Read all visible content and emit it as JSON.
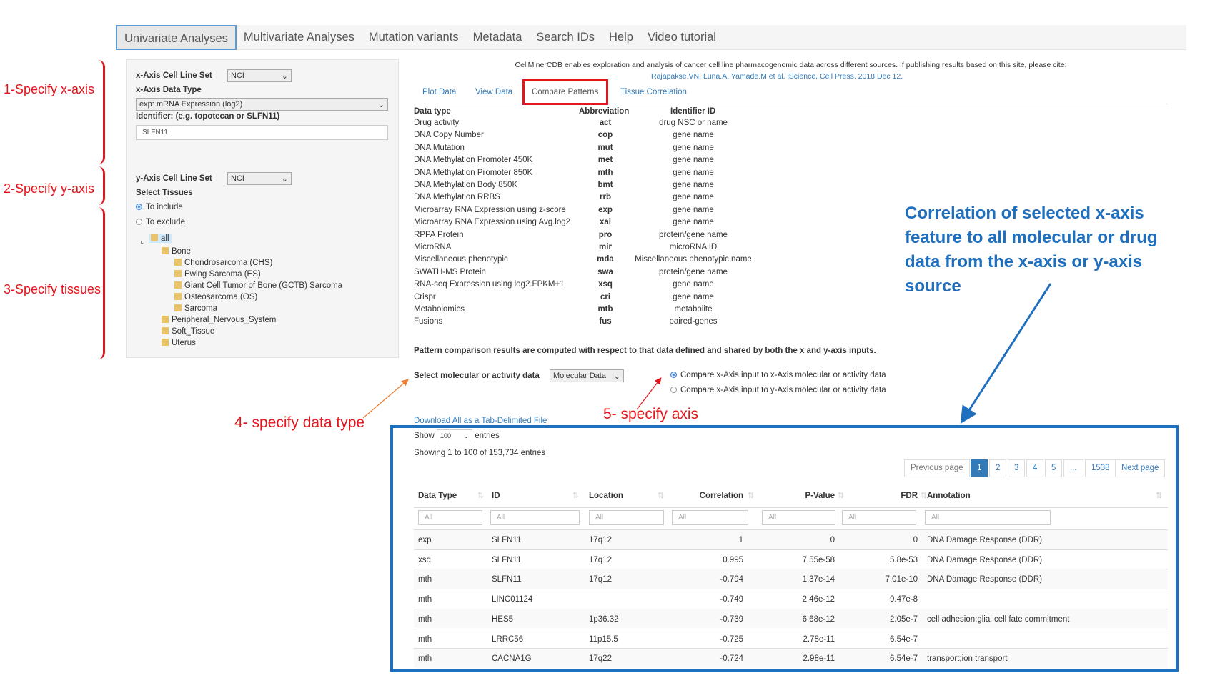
{
  "nav": {
    "tabs": [
      "Univariate Analyses",
      "Multivariate Analyses",
      "Mutation variants",
      "Metadata",
      "Search IDs",
      "Help",
      "Video tutorial"
    ],
    "active": 0
  },
  "left": {
    "x_cell_line_label": "x-Axis Cell Line Set",
    "x_cell_line_value": "NCI",
    "x_data_type_label": "x-Axis Data Type",
    "x_data_type_value": "exp: mRNA Expression (log2)",
    "identifier_label": "Identifier: (e.g. topotecan or SLFN11)",
    "identifier_value": "SLFN11",
    "y_cell_line_label": "y-Axis Cell Line Set",
    "y_cell_line_value": "NCI",
    "select_tissues_label": "Select Tissues",
    "to_include": "To include",
    "to_exclude": "To exclude",
    "tree": {
      "root": "all",
      "bone": "Bone",
      "bone_children": [
        "Chondrosarcoma (CHS)",
        "Ewing Sarcoma (ES)",
        "Giant Cell Tumor of Bone (GCTB) Sarcoma",
        "Osteosarcoma (OS)",
        "Sarcoma"
      ],
      "others": [
        "Peripheral_Nervous_System",
        "Soft_Tissue",
        "Uterus"
      ]
    }
  },
  "annotations": {
    "x_axis": "1-Specify x-axis",
    "y_axis": "2-Specify y-axis",
    "tissues": "3-Specify tissues",
    "data_type": "4- specify data type",
    "axis": "5- specify axis",
    "correlation": "Correlation of selected x-axis feature to all molecular or drug data from the x-axis or y-axis source",
    "colors": {
      "red": "#e3141b",
      "orange": "#ed7d31",
      "blue": "#1f6fbf"
    }
  },
  "intro": {
    "text": "CellMinerCDB enables exploration and analysis of cancer cell line pharmacogenomic data across different sources. If publishing results based on this site, please cite:",
    "citation": "Rajapakse.VN, Luna.A, Yamade.M et al. iScience, Cell Press. 2018 Dec 12."
  },
  "subtabs": [
    "Plot Data",
    "View Data",
    "Compare Patterns",
    "Tissue Correlation"
  ],
  "datatypes": {
    "headers": [
      "Data type",
      "Abbreviation",
      "Identifier ID"
    ],
    "rows": [
      [
        "Drug activity",
        "act",
        "drug NSC or name"
      ],
      [
        "DNA Copy Number",
        "cop",
        "gene name"
      ],
      [
        "DNA Mutation",
        "mut",
        "gene name"
      ],
      [
        "DNA Methylation Promoter 450K",
        "met",
        "gene name"
      ],
      [
        "DNA Methylation Promoter 850K",
        "mth",
        "gene name"
      ],
      [
        "DNA Methylation Body 850K",
        "bmt",
        "gene name"
      ],
      [
        "DNA Methylation RRBS",
        "rrb",
        "gene name"
      ],
      [
        "Microarray RNA Expression using z-score",
        "exp",
        "gene name"
      ],
      [
        "Microarray RNA Expression using Avg.log2",
        "xai",
        "gene name"
      ],
      [
        "RPPA Protein",
        "pro",
        "protein/gene name"
      ],
      [
        "MicroRNA",
        "mir",
        "microRNA ID"
      ],
      [
        "Miscellaneous phenotypic",
        "mda",
        "Miscellaneous phenotypic name"
      ],
      [
        "SWATH-MS Protein",
        "swa",
        "protein/gene name"
      ],
      [
        "RNA-seq Expression using log2.FPKM+1",
        "xsq",
        "gene name"
      ],
      [
        "Crispr",
        "cri",
        "gene name"
      ],
      [
        "Metabolomics",
        "mtb",
        "metabolite"
      ],
      [
        "Fusions",
        "fus",
        "paired-genes"
      ]
    ]
  },
  "pattern_note": "Pattern comparison results are computed with respect to that data defined and shared by both the x and y-axis inputs.",
  "select_data_label": "Select molecular or activity data",
  "select_data_value": "Molecular Data",
  "compare_x": "Compare x-Axis input to x-Axis molecular or activity data",
  "compare_y": "Compare x-Axis input to y-Axis molecular or activity data",
  "download": "Download All as a Tab-Delimited File",
  "show_label": "Show",
  "show_value": "100",
  "entries_label": "entries",
  "showing": "Showing 1 to 100 of 153,734 entries",
  "pagination": [
    "Previous page",
    "1",
    "2",
    "3",
    "4",
    "5",
    "...",
    "1538",
    "Next page"
  ],
  "table": {
    "headers": [
      "Data Type",
      "ID",
      "Location",
      "Correlation",
      "P-Value",
      "FDR",
      "Annotation"
    ],
    "filter_placeholder": "All",
    "rows": [
      [
        "exp",
        "SLFN11",
        "17q12",
        "1",
        "0",
        "0",
        "DNA Damage Response (DDR)"
      ],
      [
        "xsq",
        "SLFN11",
        "17q12",
        "0.995",
        "7.55e-58",
        "5.8e-53",
        "DNA Damage Response (DDR)"
      ],
      [
        "mth",
        "SLFN11",
        "17q12",
        "-0.794",
        "1.37e-14",
        "7.01e-10",
        "DNA Damage Response (DDR)"
      ],
      [
        "mth",
        "LINC01124",
        "",
        "-0.749",
        "2.46e-12",
        "9.47e-8",
        ""
      ],
      [
        "mth",
        "HES5",
        "1p36.32",
        "-0.739",
        "6.68e-12",
        "2.05e-7",
        "cell adhesion;glial cell fate commitment"
      ],
      [
        "mth",
        "LRRC56",
        "11p15.5",
        "-0.725",
        "2.78e-11",
        "6.54e-7",
        ""
      ],
      [
        "mth",
        "CACNA1G",
        "17q22",
        "-0.724",
        "2.98e-11",
        "6.54e-7",
        "transport;ion transport"
      ]
    ]
  }
}
